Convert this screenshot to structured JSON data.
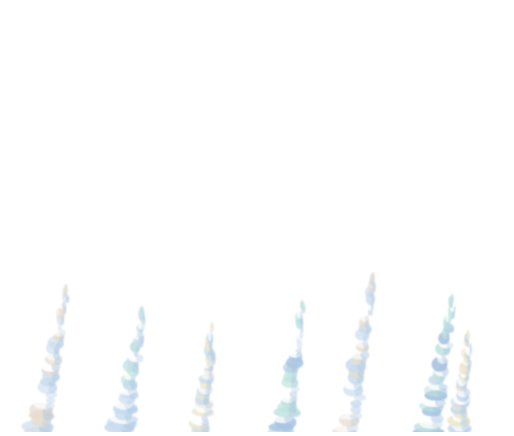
{
  "scene": {
    "background": "#ffffff",
    "palette": {
      "ice_blue": "#c9dcee",
      "mint": "#bfe3df",
      "sand": "#e6ddd0",
      "cream": "#ece7cf",
      "shadow_blue": "#a9c4e2"
    },
    "columns": [
      {
        "name": "crystal-column-1",
        "tones": [
          "#e6ddd0",
          "#c9dcee",
          "#ffffff"
        ]
      },
      {
        "name": "crystal-column-2",
        "tones": [
          "#bfe3df",
          "#c9dcee",
          "#ffffff"
        ]
      },
      {
        "name": "crystal-column-3",
        "tones": [
          "#ece7cf",
          "#c9dcee",
          "#ffffff"
        ]
      },
      {
        "name": "crystal-column-4",
        "tones": [
          "#bfe3df",
          "#a9c4e2",
          "#ffffff"
        ]
      },
      {
        "name": "crystal-column-5",
        "tones": [
          "#e6ddd0",
          "#c9dcee",
          "#ffffff"
        ]
      },
      {
        "name": "crystal-column-6",
        "tones": [
          "#bfe3df",
          "#a9c4e2",
          "#ffffff"
        ]
      },
      {
        "name": "crystal-column-7",
        "tones": [
          "#ece7cf",
          "#c9dcee",
          "#ffffff"
        ]
      }
    ]
  }
}
